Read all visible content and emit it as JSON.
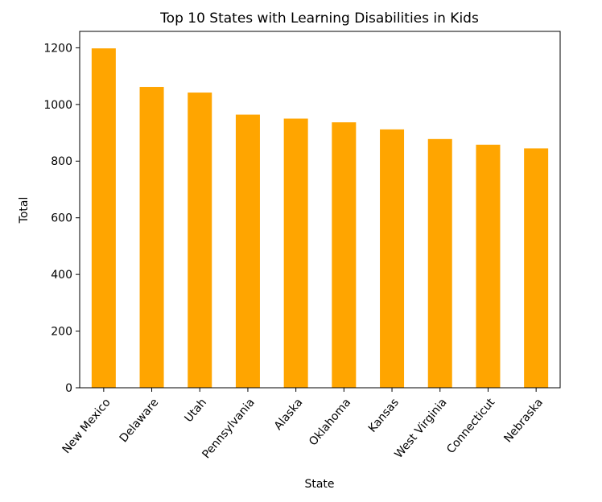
{
  "chart_data": {
    "type": "bar",
    "title": "Top 10 States with Learning Disabilities in Kids",
    "xlabel": "State",
    "ylabel": "Total",
    "categories": [
      "New Mexico",
      "Delaware",
      "Utah",
      "Pennsylvania",
      "Alaska",
      "Oklahoma",
      "Kansas",
      "West Virginia",
      "Connecticut",
      "Nebraska"
    ],
    "values": [
      1198,
      1062,
      1042,
      964,
      950,
      937,
      912,
      878,
      858,
      845
    ],
    "ylim": [
      0,
      1258
    ],
    "yticks": [
      0,
      200,
      400,
      600,
      800,
      1000,
      1200
    ],
    "grid": false,
    "legend": "none",
    "bar_color": "#ffa500",
    "x_tick_rotation_deg": 50
  }
}
